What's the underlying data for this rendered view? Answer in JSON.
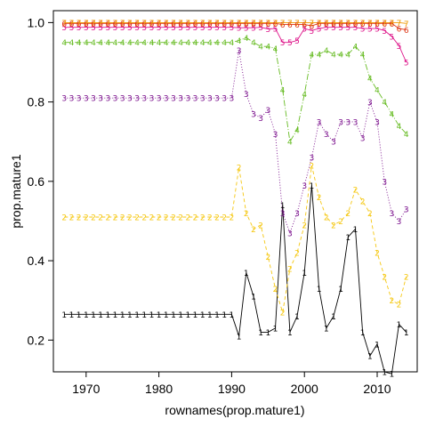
{
  "chart_data": {
    "type": "line",
    "title": "",
    "xlabel": "rownames(prop.mature1)",
    "ylabel": "prop.mature1",
    "xlim": [
      1965.5,
      2015.5
    ],
    "ylim": [
      0.12,
      1.03
    ],
    "xticks": [
      1970,
      1980,
      1990,
      2000,
      2010
    ],
    "yticks": [
      0.2,
      0.4,
      0.6,
      0.8,
      1.0
    ],
    "ytick_labels": [
      "0.2",
      "0.4",
      "0.6",
      "0.8",
      "1.0"
    ],
    "grid": false,
    "legend": "none",
    "x": [
      1967,
      1968,
      1969,
      1970,
      1971,
      1972,
      1973,
      1974,
      1975,
      1976,
      1977,
      1978,
      1979,
      1980,
      1981,
      1982,
      1983,
      1984,
      1985,
      1986,
      1987,
      1988,
      1989,
      1990,
      1991,
      1992,
      1993,
      1994,
      1995,
      1996,
      1997,
      1998,
      1999,
      2000,
      2001,
      2002,
      2003,
      2004,
      2005,
      2006,
      2007,
      2008,
      2009,
      2010,
      2011,
      2012,
      2013,
      2014
    ],
    "series": [
      {
        "label": "1",
        "color": "#000000",
        "dash": "",
        "values": [
          0.265,
          0.265,
          0.265,
          0.265,
          0.265,
          0.265,
          0.265,
          0.265,
          0.265,
          0.265,
          0.265,
          0.265,
          0.265,
          0.265,
          0.265,
          0.265,
          0.265,
          0.265,
          0.265,
          0.265,
          0.265,
          0.265,
          0.265,
          0.265,
          0.21,
          0.37,
          0.31,
          0.22,
          0.22,
          0.23,
          0.54,
          0.22,
          0.26,
          0.37,
          0.59,
          0.33,
          0.23,
          0.26,
          0.33,
          0.46,
          0.48,
          0.22,
          0.16,
          0.19,
          0.12,
          0.115,
          0.24,
          0.22
        ]
      },
      {
        "label": "2",
        "color": "#F5C710",
        "dash": "4,3",
        "values": [
          0.51,
          0.51,
          0.51,
          0.51,
          0.51,
          0.51,
          0.51,
          0.51,
          0.51,
          0.51,
          0.51,
          0.51,
          0.51,
          0.51,
          0.51,
          0.51,
          0.51,
          0.51,
          0.51,
          0.51,
          0.51,
          0.51,
          0.51,
          0.51,
          0.635,
          0.52,
          0.48,
          0.49,
          0.41,
          0.33,
          0.27,
          0.38,
          0.42,
          0.49,
          0.64,
          0.56,
          0.51,
          0.49,
          0.5,
          0.52,
          0.58,
          0.55,
          0.52,
          0.42,
          0.36,
          0.3,
          0.29,
          0.36
        ]
      },
      {
        "label": "3",
        "color": "#7A0F8C",
        "dash": "1,2",
        "values": [
          0.81,
          0.81,
          0.81,
          0.81,
          0.81,
          0.81,
          0.81,
          0.81,
          0.81,
          0.81,
          0.81,
          0.81,
          0.81,
          0.81,
          0.81,
          0.81,
          0.81,
          0.81,
          0.81,
          0.81,
          0.81,
          0.81,
          0.81,
          0.81,
          0.93,
          0.82,
          0.77,
          0.76,
          0.78,
          0.72,
          0.52,
          0.47,
          0.52,
          0.59,
          0.66,
          0.75,
          0.72,
          0.7,
          0.75,
          0.75,
          0.75,
          0.71,
          0.8,
          0.75,
          0.6,
          0.52,
          0.5,
          0.53
        ]
      },
      {
        "label": "4",
        "color": "#66BB22",
        "dash": "7,2,1,2",
        "values": [
          0.95,
          0.95,
          0.95,
          0.95,
          0.95,
          0.95,
          0.95,
          0.95,
          0.95,
          0.95,
          0.95,
          0.95,
          0.95,
          0.95,
          0.95,
          0.95,
          0.95,
          0.95,
          0.95,
          0.95,
          0.95,
          0.95,
          0.95,
          0.95,
          0.955,
          0.962,
          0.95,
          0.94,
          0.94,
          0.935,
          0.83,
          0.7,
          0.73,
          0.82,
          0.92,
          0.92,
          0.93,
          0.92,
          0.92,
          0.92,
          0.94,
          0.92,
          0.86,
          0.83,
          0.8,
          0.77,
          0.74,
          0.72
        ]
      },
      {
        "label": "5",
        "color": "#DD1188",
        "dash": "",
        "values": [
          0.988,
          0.988,
          0.988,
          0.988,
          0.988,
          0.988,
          0.988,
          0.988,
          0.988,
          0.988,
          0.988,
          0.988,
          0.988,
          0.988,
          0.988,
          0.988,
          0.988,
          0.988,
          0.988,
          0.988,
          0.988,
          0.988,
          0.988,
          0.988,
          0.987,
          0.987,
          0.987,
          0.988,
          0.984,
          0.985,
          0.95,
          0.95,
          0.955,
          0.985,
          0.98,
          0.985,
          0.988,
          0.988,
          0.988,
          0.988,
          0.988,
          0.985,
          0.985,
          0.985,
          0.98,
          0.965,
          0.942,
          0.9
        ]
      },
      {
        "label": "6",
        "color": "#DD3311",
        "dash": "",
        "values": [
          0.998,
          0.998,
          0.998,
          0.998,
          0.998,
          0.998,
          0.998,
          0.998,
          0.998,
          0.998,
          0.998,
          0.998,
          0.998,
          0.998,
          0.998,
          0.998,
          0.998,
          0.998,
          0.998,
          0.998,
          0.998,
          0.998,
          0.998,
          0.998,
          0.998,
          0.998,
          0.998,
          0.998,
          0.998,
          0.998,
          0.995,
          0.995,
          0.995,
          0.995,
          0.992,
          0.998,
          0.998,
          0.998,
          0.998,
          0.998,
          0.998,
          0.998,
          0.998,
          0.998,
          0.998,
          0.998,
          0.985,
          0.982
        ]
      },
      {
        "label": "7",
        "color": "#EE9900",
        "dash": "",
        "values": [
          1.0,
          1.0,
          1.0,
          1.0,
          1.0,
          1.0,
          1.0,
          1.0,
          1.0,
          1.0,
          1.0,
          1.0,
          1.0,
          1.0,
          1.0,
          1.0,
          1.0,
          1.0,
          1.0,
          1.0,
          1.0,
          1.0,
          1.0,
          1.0,
          1.0,
          1.0,
          1.0,
          1.0,
          1.0,
          1.0,
          1.0,
          1.0,
          1.0,
          1.0,
          1.0,
          1.0,
          1.0,
          1.0,
          1.0,
          1.0,
          1.0,
          1.0,
          1.0,
          1.0,
          1.0,
          1.0,
          1.0,
          0.998
        ]
      }
    ]
  }
}
